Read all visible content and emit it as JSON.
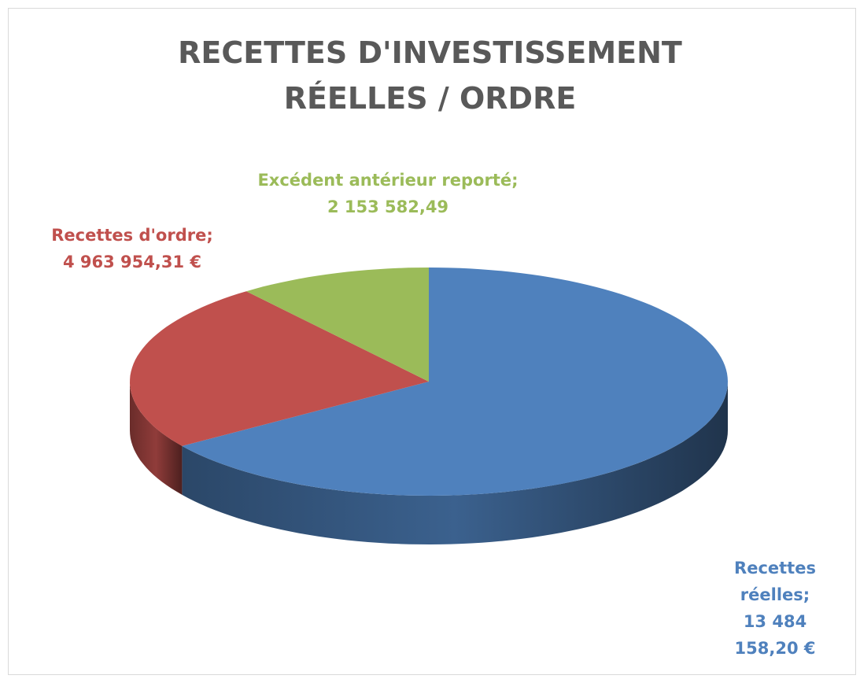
{
  "chart_data": {
    "type": "pie3d",
    "title": [
      "RECETTES D'INVESTISSEMENT",
      "RÉELLES / ORDRE"
    ],
    "categories": [
      "Recettes réelles;",
      "Recettes d'ordre;",
      "Excédent antérieur reporté;"
    ],
    "values": [
      13484158.2,
      4963954.31,
      2153582.49
    ],
    "value_labels": [
      "13 484 158,20 €",
      "4 963 954,31 €",
      "2 153 582,49"
    ],
    "colors": [
      "#4f81bd",
      "#c0504d",
      "#9bbb59"
    ]
  }
}
